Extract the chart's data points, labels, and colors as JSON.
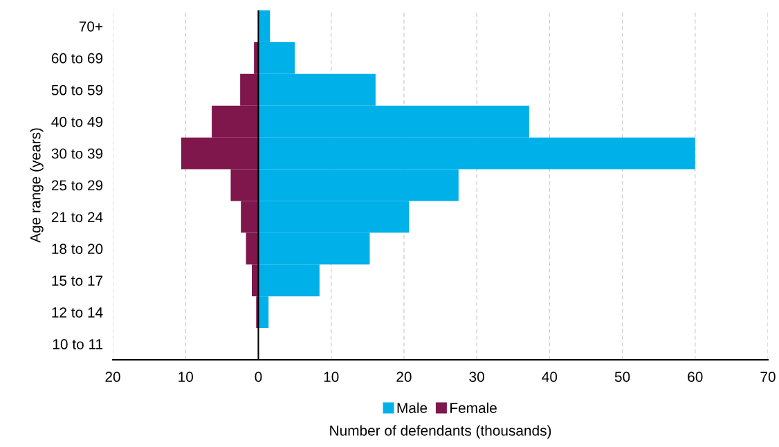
{
  "chart_data": {
    "type": "bar",
    "orientation": "horizontal",
    "stacked": true,
    "ylabel": "Age range (years)",
    "xlabel": "Number of defendants (thousands)",
    "categories": [
      "70+",
      "60 to 69",
      "50 to 59",
      "40 to 49",
      "30 to 39",
      "25 to 29",
      "21 to 24",
      "18 to 20",
      "15 to 17",
      "12 to 14",
      "10 to 11"
    ],
    "series": [
      {
        "name": "Male",
        "color": "#00b0e8",
        "values": [
          1.6,
          5.0,
          16.1,
          37.2,
          60.0,
          27.5,
          20.7,
          15.3,
          8.4,
          1.4,
          0
        ]
      },
      {
        "name": "Female",
        "color": "#7f164c",
        "values": [
          null,
          -0.6,
          -2.5,
          -6.4,
          -10.6,
          -3.8,
          -2.4,
          -1.7,
          -0.9,
          -0.3,
          0
        ]
      }
    ],
    "xlim": [
      -20,
      70
    ],
    "xticks": [
      {
        "value": -20,
        "label": "20"
      },
      {
        "value": -10,
        "label": "10"
      },
      0,
      10,
      20,
      30,
      40,
      50,
      60,
      70
    ],
    "ref_lines": [
      {
        "axis": "x",
        "value": 0,
        "color": "#000000"
      }
    ],
    "grid": "x",
    "legend": "bottom"
  }
}
